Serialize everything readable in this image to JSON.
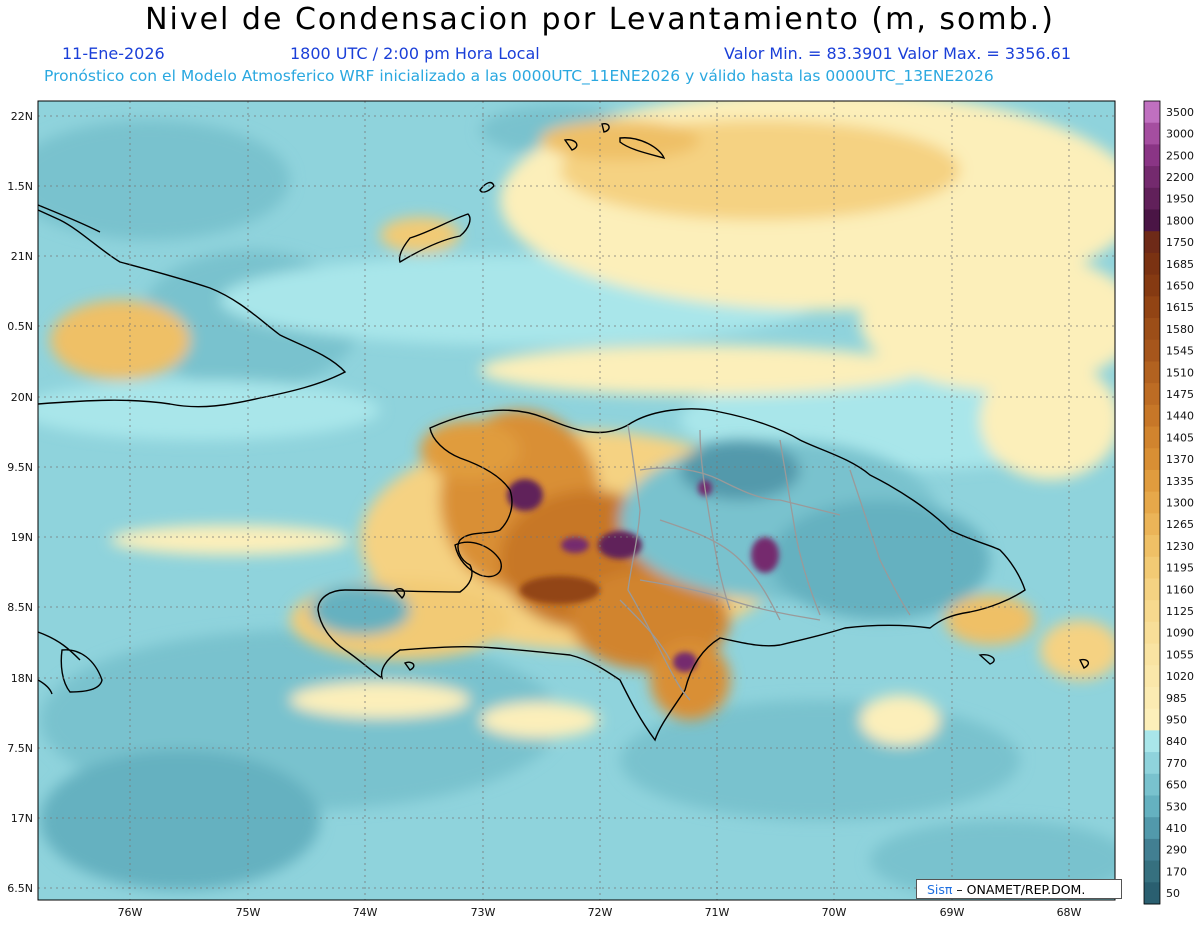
{
  "title": "Nivel de Condensacion por Levantamiento (m, somb.)",
  "header": {
    "date": "11-Ene-2026",
    "time": "1800 UTC / 2:00 pm Hora Local",
    "min_max": "Valor Min. = 83.3901   Valor Max. = 3356.61",
    "model_line": "Pronóstico con el Modelo Atmosferico WRF inicializado a las 0000UTC_11ENE2026 y válido hasta las  0000UTC_13ENE2026"
  },
  "axes": {
    "lat_labels": [
      "22N",
      "1.5N",
      "21N",
      "0.5N",
      "20N",
      "9.5N",
      "19N",
      "8.5N",
      "18N",
      "7.5N",
      "17N",
      "6.5N"
    ],
    "lon_labels": [
      "76W",
      "75W",
      "74W",
      "73W",
      "72W",
      "71W",
      "70W",
      "69W",
      "68W"
    ]
  },
  "colorbar": {
    "levels": [
      "3500",
      "3000",
      "2500",
      "2200",
      "1950",
      "1800",
      "1750",
      "1685",
      "1650",
      "1615",
      "1580",
      "1545",
      "1510",
      "1475",
      "1440",
      "1405",
      "1370",
      "1335",
      "1300",
      "1265",
      "1230",
      "1195",
      "1160",
      "1125",
      "1090",
      "1055",
      "1020",
      "985",
      "950",
      "840",
      "770",
      "650",
      "530",
      "410",
      "290",
      "170",
      "50"
    ],
    "colors": [
      "#c070c0",
      "#a54ea0",
      "#8a3585",
      "#742a6e",
      "#61205a",
      "#4a1545",
      "#6e2a18",
      "#7a3212",
      "#853a12",
      "#924414",
      "#9c4e18",
      "#a6561c",
      "#b26220",
      "#bd6c24",
      "#c77728",
      "#d1842e",
      "#d98f34",
      "#e09c3e",
      "#e6a84a",
      "#ebb458",
      "#efc066",
      "#f2ca74",
      "#f5d282",
      "#f7d98e",
      "#f8de98",
      "#f9e3a2",
      "#fae7aa",
      "#fbebb2",
      "#fcefba",
      "#a9e6ea",
      "#8fd3dc",
      "#79c2ce",
      "#65b1c0",
      "#5299ab",
      "#427f92",
      "#36707f",
      "#2a5f70"
    ]
  },
  "credit": {
    "brand": "Sisπ",
    "org": " –  ONAMET/REP.DOM."
  }
}
